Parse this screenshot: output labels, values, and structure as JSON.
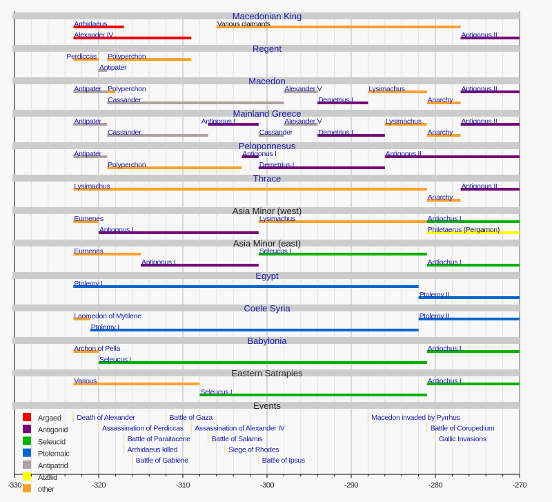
{
  "chart_data": {
    "type": "timeline",
    "xlim": [
      -330,
      -270
    ],
    "x_ticks": [
      -330,
      -320,
      -310,
      -300,
      -290,
      -280,
      -270
    ],
    "grid": "minor every 2 years, major every 10",
    "legend_placement": "bottom-left",
    "legend": [
      {
        "name": "Argaed",
        "color": "#ee0000"
      },
      {
        "name": "Antigonid",
        "color": "#770077"
      },
      {
        "name": "Seleucid",
        "color": "#00b000"
      },
      {
        "name": "Ptolemaic",
        "color": "#0066cc"
      },
      {
        "name": "Antipatrid",
        "color": "#b0a0a0"
      },
      {
        "name": "Atallid",
        "color": "#ffff00"
      },
      {
        "name": "other",
        "color": "#ffa030"
      }
    ],
    "sections": [
      {
        "title": "Macedonian King",
        "title_link": true,
        "rows": [
          [
            {
              "label": "Arrhidaeus",
              "start": -323,
              "end": -317,
              "dyn": "Argaed"
            },
            {
              "label": "Various claimants",
              "start": -306,
              "end": -277,
              "dyn": "other",
              "plain": true
            }
          ],
          [
            {
              "label": "Alexander IV",
              "start": -323,
              "end": -309,
              "dyn": "Argaed"
            },
            {
              "label": "Antigonus II",
              "start": -277,
              "end": -270,
              "dyn": "Antigonid"
            }
          ]
        ]
      },
      {
        "title": "Regent",
        "title_link": true,
        "rows": [
          [
            {
              "label": "Perdiccas",
              "start": -323,
              "end": -320,
              "dyn": "other",
              "label_before": true
            },
            {
              "label": "Polyperchon",
              "start": -319,
              "end": -309,
              "dyn": "other"
            }
          ],
          [
            {
              "label": "Antipater",
              "start": -320,
              "end": -319,
              "dyn": "Antipatrid"
            }
          ]
        ]
      },
      {
        "title": "Macedon",
        "title_link": true,
        "rows": [
          [
            {
              "label": "Antipater",
              "start": -323,
              "end": -319,
              "dyn": "Antipatrid"
            },
            {
              "label": "Polyperchon",
              "start": -319,
              "end": -318,
              "dyn": "other"
            },
            {
              "label": "Alexander V",
              "start": -298,
              "end": -294,
              "dyn": "Antipatrid"
            },
            {
              "label": "Lysimachus",
              "start": -288,
              "end": -281,
              "dyn": "other"
            },
            {
              "label": "Antigonus II",
              "start": -277,
              "end": -270,
              "dyn": "Antigonid"
            }
          ],
          [
            {
              "label": "Cassander",
              "start": -319,
              "end": -298,
              "dyn": "Antipatrid"
            },
            {
              "label": "Demetrius I",
              "start": -294,
              "end": -288,
              "dyn": "Antigonid"
            },
            {
              "label": "Anarchy",
              "start": -281,
              "end": -277,
              "dyn": "other"
            }
          ]
        ]
      },
      {
        "title": "Mainland Greece",
        "title_link": true,
        "rows": [
          [
            {
              "label": "Antipater",
              "start": -323,
              "end": -319,
              "dyn": "Antipatrid"
            },
            {
              "label": "Antigonus I",
              "start": -307,
              "end": -301,
              "dyn": "Antigonid",
              "label_before": true
            },
            {
              "label": "Alexander V",
              "start": -298,
              "end": -294,
              "dyn": "Antipatrid"
            },
            {
              "label": "Lysimachus",
              "start": -286,
              "end": -281,
              "dyn": "other"
            },
            {
              "label": "Antigonus II",
              "start": -277,
              "end": -270,
              "dyn": "Antigonid"
            }
          ],
          [
            {
              "label": "Cassander",
              "start": -319,
              "end": -307,
              "dyn": "Antipatrid"
            },
            {
              "label": "Cassander",
              "start": -301,
              "end": -298,
              "dyn": "Antipatrid"
            },
            {
              "label": "Demetrius I",
              "start": -294,
              "end": -286,
              "dyn": "Antigonid"
            },
            {
              "label": "Anarchy",
              "start": -281,
              "end": -277,
              "dyn": "other"
            }
          ]
        ]
      },
      {
        "title": "Peloponnesus",
        "title_link": true,
        "rows": [
          [
            {
              "label": "Antipater",
              "start": -323,
              "end": -319,
              "dyn": "Antipatrid"
            },
            {
              "label": "Antigonus I",
              "start": -303,
              "end": -301,
              "dyn": "Antigonid"
            },
            {
              "label": "Antigonus II",
              "start": -286,
              "end": -270,
              "dyn": "Antigonid"
            }
          ],
          [
            {
              "label": "Polyperchon",
              "start": -319,
              "end": -303,
              "dyn": "other"
            },
            {
              "label": "Demetrius I",
              "start": -301,
              "end": -286,
              "dyn": "Antigonid"
            }
          ]
        ]
      },
      {
        "title": "Thrace",
        "title_link": true,
        "rows": [
          [
            {
              "label": "Lysimachus",
              "start": -323,
              "end": -281,
              "dyn": "other"
            },
            {
              "label": "Antigonus II",
              "start": -277,
              "end": -270,
              "dyn": "Antigonid"
            }
          ],
          [
            {
              "label": "Anarchy",
              "start": -281,
              "end": -277,
              "dyn": "other"
            }
          ]
        ]
      },
      {
        "title": "Asia Minor (west)",
        "title_link": false,
        "rows": [
          [
            {
              "label": "Eumenes",
              "start": -323,
              "end": -320,
              "dyn": "other"
            },
            {
              "label": "Lysimachus",
              "start": -301,
              "end": -281,
              "dyn": "other"
            },
            {
              "label": "Antiochus I",
              "start": -281,
              "end": -270,
              "dyn": "Seleucid"
            }
          ],
          [
            {
              "label": "Antigonus I",
              "start": -320,
              "end": -301,
              "dyn": "Antigonid"
            },
            {
              "label": "Philetaerus",
              "suffix": " (Pergamon)",
              "start": -281,
              "end": -270,
              "dyn": "Atallid"
            }
          ]
        ]
      },
      {
        "title": "Asia Minor (east)",
        "title_link": false,
        "rows": [
          [
            {
              "label": "Eumenes",
              "start": -323,
              "end": -315,
              "dyn": "other"
            },
            {
              "label": "Seleucus I",
              "start": -301,
              "end": -281,
              "dyn": "Seleucid"
            }
          ],
          [
            {
              "label": "Antigonus I",
              "start": -315,
              "end": -301,
              "dyn": "Antigonid"
            },
            {
              "label": "Antiochus I",
              "start": -281,
              "end": -270,
              "dyn": "Seleucid"
            }
          ]
        ]
      },
      {
        "title": "Egypt",
        "title_link": true,
        "rows": [
          [
            {
              "label": "Ptolemy I",
              "start": -323,
              "end": -282,
              "dyn": "Ptolemaic"
            }
          ],
          [
            {
              "label": "Ptolemy II",
              "start": -282,
              "end": -270,
              "dyn": "Ptolemaic"
            }
          ]
        ]
      },
      {
        "title": "Coele Syria",
        "title_link": true,
        "rows": [
          [
            {
              "label": "Laomedon of Mytilene",
              "start": -323,
              "end": -321,
              "dyn": "other"
            },
            {
              "label": "Ptolemy II",
              "start": -282,
              "end": -270,
              "dyn": "Ptolemaic"
            }
          ],
          [
            {
              "label": "Ptolemy I",
              "start": -321,
              "end": -282,
              "dyn": "Ptolemaic"
            }
          ]
        ]
      },
      {
        "title": "Babylonia",
        "title_link": true,
        "rows": [
          [
            {
              "label": "Archon of Pella",
              "start": -323,
              "end": -320,
              "dyn": "other"
            },
            {
              "label": "Antiochus I",
              "start": -281,
              "end": -270,
              "dyn": "Seleucid"
            }
          ],
          [
            {
              "label": "Seleucus I",
              "start": -320,
              "end": -281,
              "dyn": "Seleucid"
            }
          ]
        ]
      },
      {
        "title": "Eastern Satrapies",
        "title_link": false,
        "rows": [
          [
            {
              "label": "Various",
              "start": -323,
              "end": -308,
              "dyn": "other"
            },
            {
              "label": "Antiochus I",
              "start": -281,
              "end": -270,
              "dyn": "Seleucid"
            }
          ],
          [
            {
              "label": "Seleucus I",
              "start": -308,
              "end": -281,
              "dyn": "Seleucid"
            }
          ]
        ]
      }
    ],
    "events_title": "Events",
    "events": [
      [
        {
          "label": "Death of Alexander",
          "year": -323
        },
        {
          "label": "Battle of Gaza",
          "year": -312
        },
        {
          "label": "Macedon invaded by Pyrrhus",
          "year": -288
        }
      ],
      [
        {
          "label": "Assassination of Perdiccas",
          "year": -320
        },
        {
          "label": "Assassination of Alexander IV",
          "year": -309
        },
        {
          "label": "Battle of Corupedium",
          "year": -281
        }
      ],
      [
        {
          "label": "Battle of Paraitacene",
          "year": -317
        },
        {
          "label": "Battle of Salamis",
          "year": -307
        },
        {
          "label": "Gallic Invasions",
          "year": -280
        }
      ],
      [
        {
          "label": "Arrhidaeus killed",
          "year": -317
        },
        {
          "label": "Siege of Rhodes",
          "year": -305
        }
      ],
      [
        {
          "label": "Battle of Gabiene",
          "year": -316
        },
        {
          "label": "Battle of Ipsus",
          "year": -301
        }
      ]
    ]
  }
}
